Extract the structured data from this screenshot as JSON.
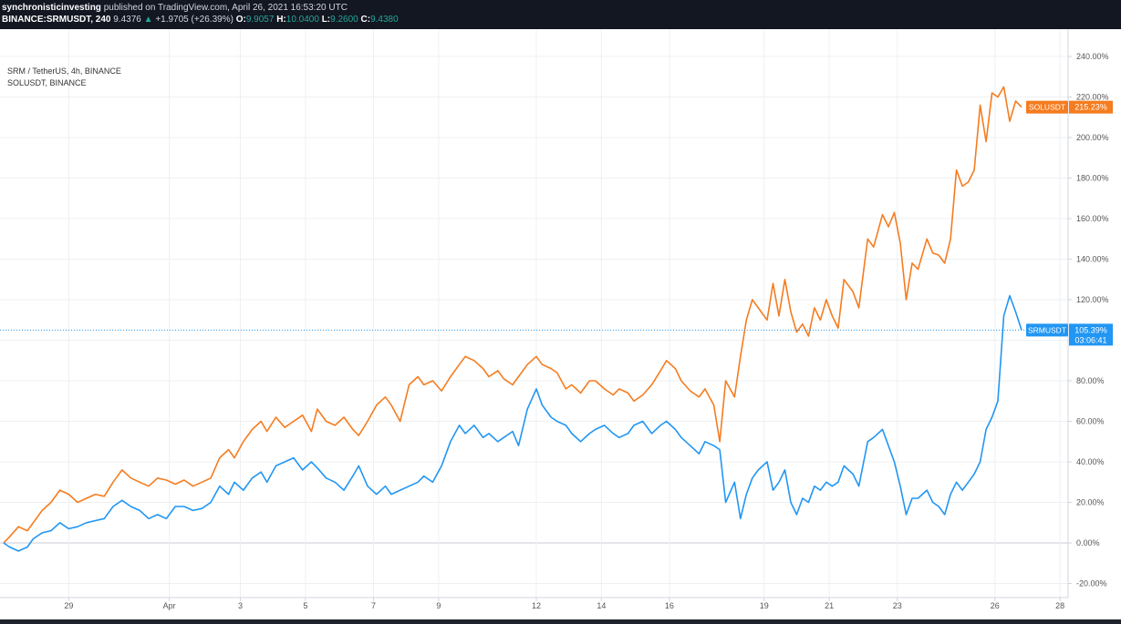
{
  "header": {
    "author": "synchronisticinvesting",
    "published": "published on TradingView.com, April 26, 2021 16:53:20 UTC",
    "symbol": "BINANCE:SRMUSDT, 240",
    "price": "9.4376",
    "change_arrow": "▲",
    "change": "+1.9705 (+26.39%)",
    "o_label": "O:",
    "o": "9.9057",
    "h_label": "H:",
    "h": "10.0400",
    "l_label": "L:",
    "l": "9.2600",
    "c_label": "C:",
    "c": "9.4380"
  },
  "legend": {
    "main": "SRM / TetherUS, 4h, BINANCE",
    "compare": "SOLUSDT, BINANCE"
  },
  "colors": {
    "srm": "#2196f3",
    "sol": "#f57c1f",
    "grid": "#eef0f3",
    "axis_text": "#555555"
  },
  "chart_data": {
    "type": "line",
    "x_ticks": [
      "29",
      "Apr",
      "3",
      "5",
      "7",
      "9",
      "12",
      "14",
      "16",
      "19",
      "21",
      "23",
      "26",
      "28"
    ],
    "y_ticks": [
      "240.00%",
      "220.00%",
      "200.00%",
      "180.00%",
      "160.00%",
      "140.00%",
      "120.00%",
      "100.00%",
      "80.00%",
      "60.00%",
      "40.00%",
      "20.00%",
      "0.00%",
      "-20.00%"
    ],
    "ylim": [
      -25,
      250
    ],
    "series": [
      {
        "name": "SOLUSDT",
        "label": "SOLUSDT",
        "last_value": "215.23%",
        "values": [
          [
            0,
            0
          ],
          [
            2,
            3
          ],
          [
            5,
            8
          ],
          [
            8,
            6
          ],
          [
            10,
            10
          ],
          [
            13,
            16
          ],
          [
            16,
            20
          ],
          [
            19,
            26
          ],
          [
            22,
            24
          ],
          [
            25,
            20
          ],
          [
            28,
            22
          ],
          [
            31,
            24
          ],
          [
            34,
            23
          ],
          [
            37,
            30
          ],
          [
            40,
            36
          ],
          [
            43,
            32
          ],
          [
            46,
            30
          ],
          [
            49,
            28
          ],
          [
            52,
            32
          ],
          [
            55,
            31
          ],
          [
            58,
            29
          ],
          [
            61,
            31
          ],
          [
            64,
            28
          ],
          [
            67,
            30
          ],
          [
            70,
            32
          ],
          [
            73,
            42
          ],
          [
            76,
            46
          ],
          [
            78,
            42
          ],
          [
            81,
            50
          ],
          [
            84,
            56
          ],
          [
            87,
            60
          ],
          [
            89,
            55
          ],
          [
            92,
            62
          ],
          [
            95,
            57
          ],
          [
            98,
            60
          ],
          [
            101,
            63
          ],
          [
            104,
            55
          ],
          [
            106,
            66
          ],
          [
            109,
            60
          ],
          [
            112,
            58
          ],
          [
            115,
            62
          ],
          [
            118,
            56
          ],
          [
            120,
            53
          ],
          [
            123,
            60
          ],
          [
            126,
            68
          ],
          [
            129,
            72
          ],
          [
            131,
            68
          ],
          [
            134,
            60
          ],
          [
            137,
            78
          ],
          [
            140,
            82
          ],
          [
            142,
            78
          ],
          [
            145,
            80
          ],
          [
            148,
            75
          ],
          [
            151,
            82
          ],
          [
            154,
            88
          ],
          [
            156,
            92
          ],
          [
            159,
            90
          ],
          [
            162,
            86
          ],
          [
            164,
            82
          ],
          [
            167,
            85
          ],
          [
            169,
            81
          ],
          [
            172,
            78
          ],
          [
            174,
            82
          ],
          [
            177,
            88
          ],
          [
            180,
            92
          ],
          [
            182,
            88
          ],
          [
            185,
            86
          ],
          [
            187,
            84
          ],
          [
            190,
            76
          ],
          [
            192,
            78
          ],
          [
            195,
            74
          ],
          [
            198,
            80
          ],
          [
            200,
            80
          ],
          [
            203,
            76
          ],
          [
            206,
            73
          ],
          [
            208,
            76
          ],
          [
            211,
            74
          ],
          [
            213,
            70
          ],
          [
            216,
            73
          ],
          [
            219,
            78
          ],
          [
            222,
            85
          ],
          [
            224,
            90
          ],
          [
            227,
            86
          ],
          [
            229,
            80
          ],
          [
            232,
            75
          ],
          [
            235,
            72
          ],
          [
            237,
            76
          ],
          [
            240,
            68
          ],
          [
            242,
            50
          ],
          [
            244,
            80
          ],
          [
            247,
            72
          ],
          [
            249,
            92
          ],
          [
            251,
            110
          ],
          [
            253,
            120
          ],
          [
            255,
            116
          ],
          [
            258,
            110
          ],
          [
            260,
            128
          ],
          [
            262,
            112
          ],
          [
            264,
            130
          ],
          [
            266,
            114
          ],
          [
            268,
            104
          ],
          [
            270,
            108
          ],
          [
            272,
            102
          ],
          [
            274,
            116
          ],
          [
            276,
            110
          ],
          [
            278,
            120
          ],
          [
            280,
            112
          ],
          [
            282,
            106
          ],
          [
            284,
            130
          ],
          [
            287,
            124
          ],
          [
            289,
            116
          ],
          [
            292,
            150
          ],
          [
            294,
            146
          ],
          [
            297,
            162
          ],
          [
            299,
            156
          ],
          [
            301,
            163
          ],
          [
            303,
            148
          ],
          [
            305,
            120
          ],
          [
            307,
            138
          ],
          [
            309,
            135
          ],
          [
            312,
            150
          ],
          [
            314,
            143
          ],
          [
            316,
            142
          ],
          [
            318,
            138
          ],
          [
            320,
            150
          ],
          [
            322,
            184
          ],
          [
            324,
            176
          ],
          [
            326,
            178
          ],
          [
            328,
            184
          ],
          [
            330,
            216
          ],
          [
            332,
            198
          ],
          [
            334,
            222
          ],
          [
            336,
            220
          ],
          [
            338,
            225
          ],
          [
            340,
            208
          ],
          [
            342,
            218
          ],
          [
            344,
            215
          ]
        ]
      },
      {
        "name": "SRMUSDT",
        "label": "SRMUSDT",
        "last_value": "105.39%",
        "countdown": "03:06:41",
        "values": [
          [
            0,
            0
          ],
          [
            2,
            -2
          ],
          [
            5,
            -4
          ],
          [
            8,
            -2
          ],
          [
            10,
            2
          ],
          [
            13,
            5
          ],
          [
            16,
            6
          ],
          [
            19,
            10
          ],
          [
            22,
            7
          ],
          [
            25,
            8
          ],
          [
            28,
            10
          ],
          [
            31,
            11
          ],
          [
            34,
            12
          ],
          [
            37,
            18
          ],
          [
            40,
            21
          ],
          [
            43,
            18
          ],
          [
            46,
            16
          ],
          [
            49,
            12
          ],
          [
            52,
            14
          ],
          [
            55,
            12
          ],
          [
            58,
            18
          ],
          [
            61,
            18
          ],
          [
            64,
            16
          ],
          [
            67,
            17
          ],
          [
            70,
            20
          ],
          [
            73,
            28
          ],
          [
            76,
            24
          ],
          [
            78,
            30
          ],
          [
            81,
            26
          ],
          [
            84,
            32
          ],
          [
            87,
            35
          ],
          [
            89,
            30
          ],
          [
            92,
            38
          ],
          [
            95,
            40
          ],
          [
            98,
            42
          ],
          [
            101,
            36
          ],
          [
            104,
            40
          ],
          [
            106,
            37
          ],
          [
            109,
            32
          ],
          [
            112,
            30
          ],
          [
            115,
            26
          ],
          [
            118,
            33
          ],
          [
            120,
            38
          ],
          [
            123,
            28
          ],
          [
            126,
            24
          ],
          [
            129,
            28
          ],
          [
            131,
            24
          ],
          [
            134,
            26
          ],
          [
            137,
            28
          ],
          [
            140,
            30
          ],
          [
            142,
            33
          ],
          [
            145,
            30
          ],
          [
            148,
            38
          ],
          [
            151,
            50
          ],
          [
            154,
            58
          ],
          [
            156,
            54
          ],
          [
            159,
            58
          ],
          [
            162,
            52
          ],
          [
            164,
            54
          ],
          [
            167,
            50
          ],
          [
            169,
            52
          ],
          [
            172,
            55
          ],
          [
            174,
            48
          ],
          [
            177,
            66
          ],
          [
            180,
            76
          ],
          [
            182,
            68
          ],
          [
            185,
            62
          ],
          [
            187,
            60
          ],
          [
            190,
            58
          ],
          [
            192,
            54
          ],
          [
            195,
            50
          ],
          [
            198,
            54
          ],
          [
            200,
            56
          ],
          [
            203,
            58
          ],
          [
            206,
            54
          ],
          [
            208,
            52
          ],
          [
            211,
            54
          ],
          [
            213,
            58
          ],
          [
            216,
            60
          ],
          [
            219,
            54
          ],
          [
            222,
            58
          ],
          [
            224,
            60
          ],
          [
            227,
            56
          ],
          [
            229,
            52
          ],
          [
            232,
            48
          ],
          [
            235,
            44
          ],
          [
            237,
            50
          ],
          [
            240,
            48
          ],
          [
            242,
            46
          ],
          [
            244,
            20
          ],
          [
            247,
            30
          ],
          [
            249,
            12
          ],
          [
            251,
            24
          ],
          [
            253,
            32
          ],
          [
            255,
            36
          ],
          [
            258,
            40
          ],
          [
            260,
            26
          ],
          [
            262,
            30
          ],
          [
            264,
            36
          ],
          [
            266,
            20
          ],
          [
            268,
            14
          ],
          [
            270,
            22
          ],
          [
            272,
            20
          ],
          [
            274,
            28
          ],
          [
            276,
            26
          ],
          [
            278,
            30
          ],
          [
            280,
            28
          ],
          [
            282,
            30
          ],
          [
            284,
            38
          ],
          [
            287,
            34
          ],
          [
            289,
            28
          ],
          [
            292,
            50
          ],
          [
            294,
            52
          ],
          [
            297,
            56
          ],
          [
            299,
            48
          ],
          [
            301,
            40
          ],
          [
            303,
            28
          ],
          [
            305,
            14
          ],
          [
            307,
            22
          ],
          [
            309,
            22
          ],
          [
            312,
            26
          ],
          [
            314,
            20
          ],
          [
            316,
            18
          ],
          [
            318,
            14
          ],
          [
            320,
            24
          ],
          [
            322,
            30
          ],
          [
            324,
            26
          ],
          [
            326,
            30
          ],
          [
            328,
            34
          ],
          [
            330,
            40
          ],
          [
            332,
            56
          ],
          [
            334,
            62
          ],
          [
            336,
            70
          ],
          [
            338,
            112
          ],
          [
            340,
            122
          ],
          [
            342,
            114
          ],
          [
            344,
            105
          ]
        ]
      }
    ]
  }
}
